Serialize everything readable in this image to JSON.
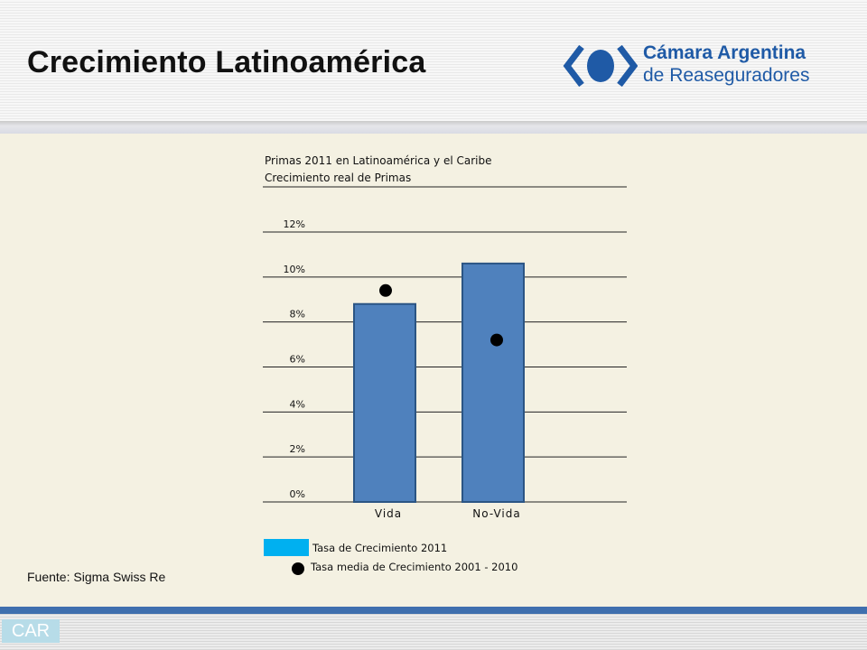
{
  "slide": {
    "title": "Crecimiento Latinoamérica",
    "source": "Fuente: Sigma Swiss Re",
    "footer_badge": "CAR"
  },
  "logo": {
    "line1": "Cámara Argentina",
    "line2": "de Reaseguradores",
    "color": "#1f5aa6"
  },
  "chart_data": {
    "type": "bar",
    "title": "Primas 2011 en Latinoamérica y el Caribe",
    "subtitle": "Crecimiento real de Primas",
    "categories": [
      "Vida",
      "No-Vida"
    ],
    "series": [
      {
        "name": "Tasa de Crecimiento 2011",
        "kind": "bar",
        "values": [
          8.8,
          10.6
        ],
        "color": "#4f81bd"
      },
      {
        "name": "Tasa media de Crecimiento 2001 - 2010",
        "kind": "marker",
        "values": [
          9.4,
          7.2
        ],
        "color": "#000000"
      }
    ],
    "ylim": [
      0,
      12
    ],
    "yticks": [
      "0%",
      "2%",
      "4%",
      "6%",
      "8%",
      "10%",
      "12%"
    ],
    "grid": true,
    "legend_position": "bottom-left"
  }
}
